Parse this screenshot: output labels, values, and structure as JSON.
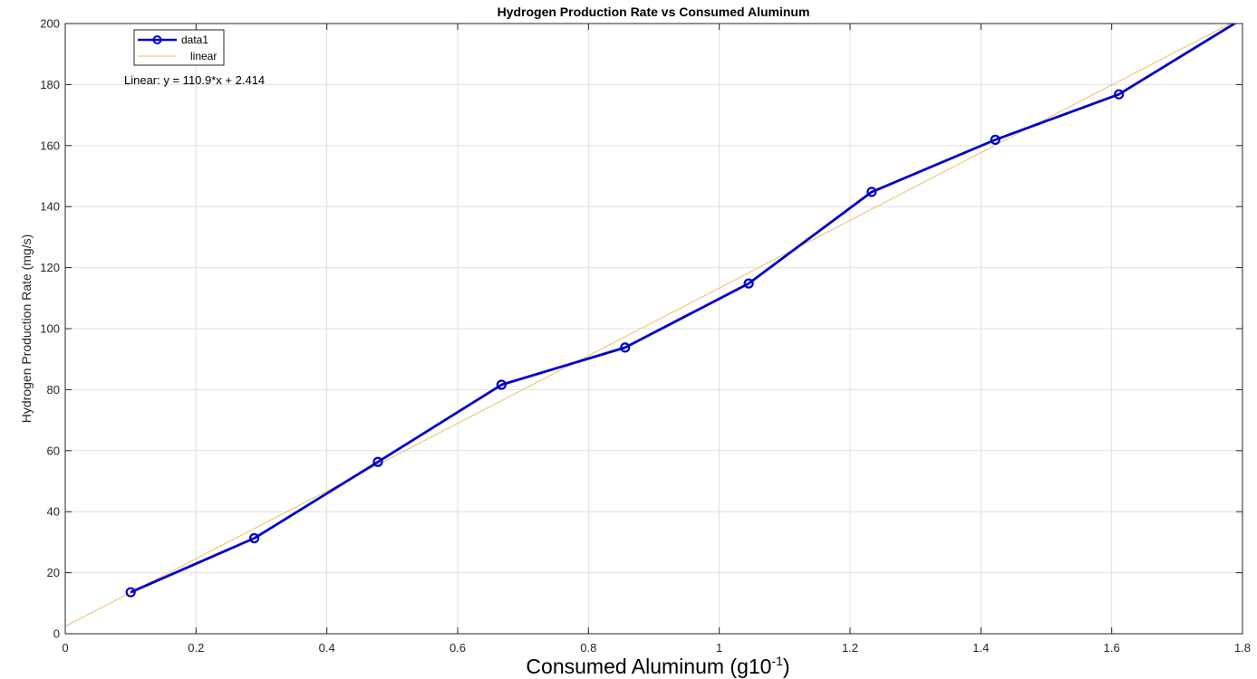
{
  "chart_data": {
    "type": "line",
    "title": "Hydrogen Production Rate vs Consumed Aluminum",
    "xlabel": "Consumed Aluminum (g10",
    "xlabel_superscript": "-1",
    "xlabel_suffix": ")",
    "ylabel": "Hydrogen Production Rate (mg/s)",
    "xlim": [
      0,
      1.8
    ],
    "ylim": [
      0,
      200
    ],
    "x_ticks": [
      0,
      0.2,
      0.4,
      0.6,
      0.8,
      1,
      1.2,
      1.4,
      1.6,
      1.8
    ],
    "x_tick_labels": [
      "0",
      "0.2",
      "0.4",
      "0.6",
      "0.8",
      "1",
      "1.2",
      "1.4",
      "1.6",
      "1.8"
    ],
    "y_ticks": [
      0,
      20,
      40,
      60,
      80,
      100,
      120,
      140,
      160,
      180,
      200
    ],
    "y_tick_labels": [
      "0",
      "20",
      "40",
      "60",
      "80",
      "100",
      "120",
      "140",
      "160",
      "180",
      "200"
    ],
    "grid": true,
    "legend_position": "top-left",
    "series": [
      {
        "name": "data1",
        "color": "#0000cc",
        "marker": "circle",
        "x": [
          0.1,
          0.289,
          0.478,
          0.667,
          0.856,
          1.045,
          1.233,
          1.422,
          1.611,
          1.8
        ],
        "y": [
          13.6,
          31.3,
          56.3,
          81.6,
          93.8,
          114.8,
          144.8,
          161.9,
          176.8,
          201.6
        ]
      },
      {
        "name": "linear",
        "color": "#e8c06a",
        "marker": "none",
        "slope": 110.9,
        "intercept": 2.414,
        "x": [
          0,
          1.8
        ],
        "y": [
          2.414,
          202.034
        ]
      }
    ],
    "annotation": "Linear:  y = 110.9*x + 2.414"
  }
}
